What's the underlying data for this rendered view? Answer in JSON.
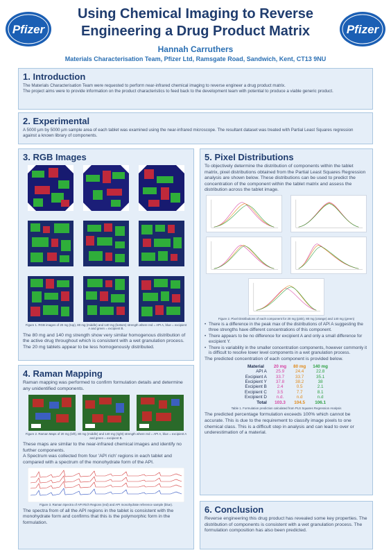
{
  "header": {
    "title_line1": "Using Chemical Imaging to Reverse",
    "title_line2": "Engineering a Drug Product Matrix",
    "author": "Hannah Carruthers",
    "affiliation": "Materials Characterisation Team, Pfizer Ltd, Ramsgate Road, Sandwich, Kent, CT13 9NU",
    "logo_text": "Pfizer"
  },
  "intro": {
    "heading": "1.   Introduction",
    "p1": "The Materials Characterisation Team were requested to perform near-infrared chemical imaging to reverse engineer a drug product matrix.",
    "p2": "The project aims were to provide information on the product characteristics to feed back to the development team with potential to produce a viable generic product."
  },
  "experimental": {
    "heading": "2.   Experimental",
    "p1": "A 5000 µm by 5000 µm sample area of each tablet was examined using the near-infrared microscope. The resultant dataset was treated with Partial Least Squares regression against a known library of components."
  },
  "rgb": {
    "heading": "3. RGB Images",
    "caption": "Figure 1. RGB images of 20 mg (top), 80 mg (middle) and 140 mg (bottom) strength where red = API A, blue = excipient A and green = excipient B.",
    "p1": "The 80 mg and 140 mg strength show very similar homogenous distribution of the active drug throughout which is consistent with a wet granulation process. The 20 mg tablets appear to be less homogenously distributed."
  },
  "raman": {
    "heading": "4. Raman Mapping",
    "p1": "Raman mapping was performed to confirm formulation details and determine any unidentified components.",
    "caption1": "Figure 2. Raman Maps of 20 mg (left), 80 mg (middle) and 140 mg (right) strength where red = API A, blue = excipient A and green = excipient B.",
    "p2": "These maps are similar to the near-infrared chemical images and identify no further components.",
    "p3": "A Spectrum was collected from four 'API rich' regions in each tablet and compared with a spectrum of the monohydrate form of the API.",
    "caption2": "Figure 3. Raman Spectra of API Rich Regions (red) and API monohydrate reference sample (blue).",
    "p4": "The spectra from of all the API regions in the tablet is consistent with the monohydrate form and confirms that this is the polymorphic form in the formulation."
  },
  "pixel": {
    "heading": "5. Pixel Distributions",
    "p1": "To objectively determine the distribution of components within the tablet matrix, pixel distributions obtained from the Partial Least Squares Regression analysis are shown below. These distributions can be used to predict the concentration of the component within the tablet matrix and assess the distribution across the tablet image.",
    "caption": "Figure 2. Pixel Distributions of each component for 20 mg (pink), 80 mg (orange) and 140 mg (green)",
    "bullets": [
      "There is a difference in the peak max of the distributions of API A suggesting the three strengths have different concentrations of this component.",
      "There appears to be no difference for excipient A and only a small difference for excipient Y.",
      "There is variability in the smaller concentration components, however commonly it is difficult to resolve lower level components in a wet granulation process."
    ],
    "table_intro": "The predicted concentration of each component is  provided below.",
    "table": {
      "headers": [
        "Material",
        "20 mg",
        "80 mg",
        "140 mg"
      ],
      "rows": [
        {
          "name": "API A",
          "v20": "25.9",
          "v80": "24.4",
          "v140": "22.8"
        },
        {
          "name": "Excipient A",
          "v20": "33.7",
          "v80": "33.7",
          "v140": "35.1"
        },
        {
          "name": "Excipient Y",
          "v20": "37.8",
          "v80": "38.2",
          "v140": "38"
        },
        {
          "name": "Excipient B",
          "v20": "2.4",
          "v80": "0.5",
          "v140": "2.1"
        },
        {
          "name": "Excipient C",
          "v20": "3.5",
          "v80": "7.7",
          "v140": "8.1"
        },
        {
          "name": "Excipient D",
          "v20": "n.d.",
          "v80": "n.d",
          "v140": "n.d"
        },
        {
          "name": "Total",
          "v20": "103.3",
          "v80": "104.5",
          "v140": "106.1"
        }
      ]
    },
    "table_caption": "Table 1.  Formulation prediction calculated from PLS Squares Regression Analysis",
    "p2": "The predicted percentage formulation exceeds 100% which cannot be accurate.  This is due to the  requirement to classify image pixels to one chemical class. This is a difficult step in analysis and can lead to over or underestimation of a material."
  },
  "conclusion": {
    "heading": "6. Conclusion",
    "p1": "Reverse engineering this drug product has revealed some key properties. The distribution of components is consistent with a wet granulation process. The formulation composition has also been predicted."
  },
  "colors": {
    "accent": "#1f3c6e",
    "panel": "#e5eef8",
    "pink_20mg": "#d63fa0",
    "orange_80mg": "#e08a1a",
    "green_140mg": "#2ea043"
  }
}
